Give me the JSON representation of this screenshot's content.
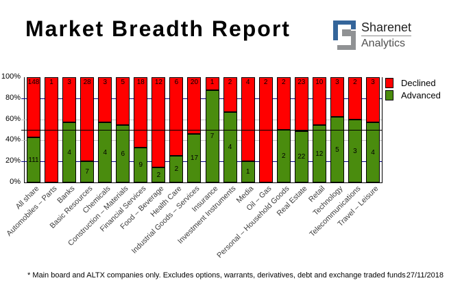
{
  "header": {
    "title": "Market Breadth Report",
    "logo": {
      "name": "Sharenet",
      "sub": "Analytics",
      "blue": "#34659a",
      "gray": "#909294"
    }
  },
  "legend": [
    {
      "label": "Declined",
      "color": "#ff0000"
    },
    {
      "label": "Advanced",
      "color": "#4a8c0e"
    }
  ],
  "footnote": {
    "text": "* Main board and ALTX companies only. Excludes options, warrants, derivatives, debt and exchange traded funds",
    "date": "27/11/2018"
  },
  "chart_data": {
    "type": "bar",
    "stacked": true,
    "stacking": "percent",
    "title": "Market Breadth Report",
    "xlabel": "",
    "ylabel": "",
    "ylim": [
      0,
      100
    ],
    "y_ticks": [
      "0%",
      "20%",
      "40%",
      "60%",
      "80%",
      "100%"
    ],
    "legend_position": "right-top",
    "categories": [
      "All share",
      "Automobiles – Parts",
      "Banks",
      "Basic Resources",
      "Chemicals",
      "Construction – Materials",
      "Financial Services",
      "Food – Beverage",
      "Health Care",
      "Industrial Goods – Services",
      "Insurance",
      "Investment Instruments",
      "Media",
      "Oil – Gas",
      "Personal – Household Goods",
      "Real Estate",
      "Retail",
      "Technology",
      "Telecommunications",
      "Travel – Leisure"
    ],
    "series": [
      {
        "name": "Declined",
        "color": "#ff0000",
        "values": [
          148,
          1,
          3,
          28,
          3,
          5,
          18,
          12,
          6,
          20,
          1,
          2,
          4,
          2,
          2,
          23,
          10,
          3,
          2,
          3
        ]
      },
      {
        "name": "Advanced",
        "color": "#4a8c0e",
        "values": [
          111,
          0,
          4,
          7,
          4,
          6,
          9,
          2,
          2,
          17,
          7,
          4,
          1,
          0,
          2,
          22,
          12,
          5,
          3,
          4
        ]
      }
    ],
    "gridlines": [
      {
        "pct": 20,
        "color": "#000080"
      },
      {
        "pct": 40,
        "color": "#c0c0c0"
      },
      {
        "pct": 50,
        "color": "#000000"
      },
      {
        "pct": 60,
        "color": "#c0c0c0"
      },
      {
        "pct": 80,
        "color": "#000080"
      }
    ]
  }
}
